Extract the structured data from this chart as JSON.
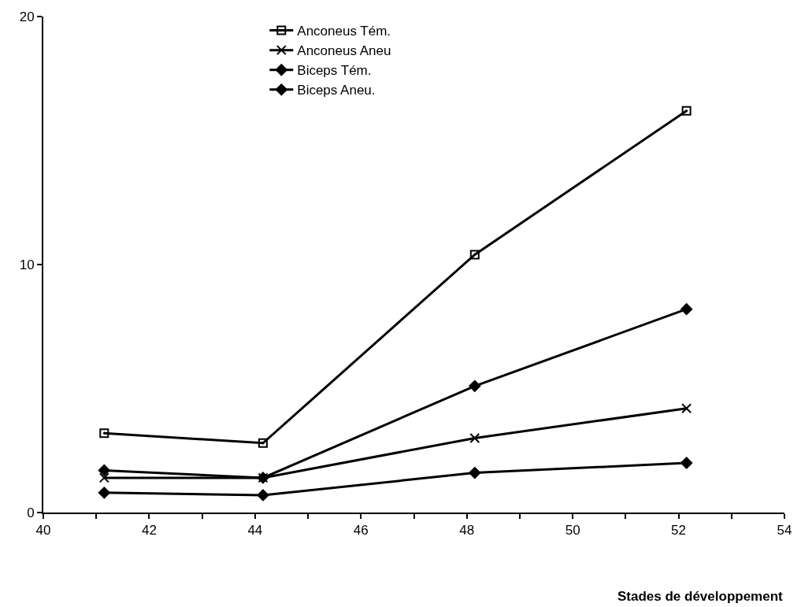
{
  "chart_data": {
    "type": "line",
    "xlabel": "Stades de développement",
    "x": [
      41.15,
      44.15,
      48.15,
      52.15
    ],
    "series": [
      {
        "name": "Anconeus Tém.",
        "color": "#000000",
        "marker": "square",
        "values": [
          3.2,
          2.8,
          10.4,
          16.2
        ]
      },
      {
        "name": "Anconeus Aneu",
        "color": "#000000",
        "marker": "cross",
        "values": [
          1.4,
          1.4,
          3.0,
          4.2
        ]
      },
      {
        "name": "Biceps Tém.",
        "color": "#000000",
        "marker": "diamond",
        "values": [
          1.7,
          1.4,
          5.1,
          8.2
        ]
      },
      {
        "name": "Biceps Aneu.",
        "color": "#000000",
        "marker": "diamond",
        "values": [
          0.8,
          0.7,
          1.6,
          2.0
        ]
      }
    ],
    "xlim": [
      40,
      54
    ],
    "xticks": [
      40,
      {
        "value": 41,
        "label": null
      },
      42,
      {
        "value": 43,
        "label": null
      },
      44,
      {
        "value": 45,
        "label": null
      },
      46,
      {
        "value": 47,
        "label": null
      },
      48,
      {
        "value": 49,
        "label": null
      },
      50,
      {
        "value": 51,
        "label": null
      },
      52,
      {
        "value": 53,
        "label": null
      },
      54
    ],
    "ylim": [
      0,
      20
    ],
    "yticks": [
      0,
      10,
      20
    ],
    "grid": false,
    "legend": "top",
    "line_style": "solid"
  }
}
